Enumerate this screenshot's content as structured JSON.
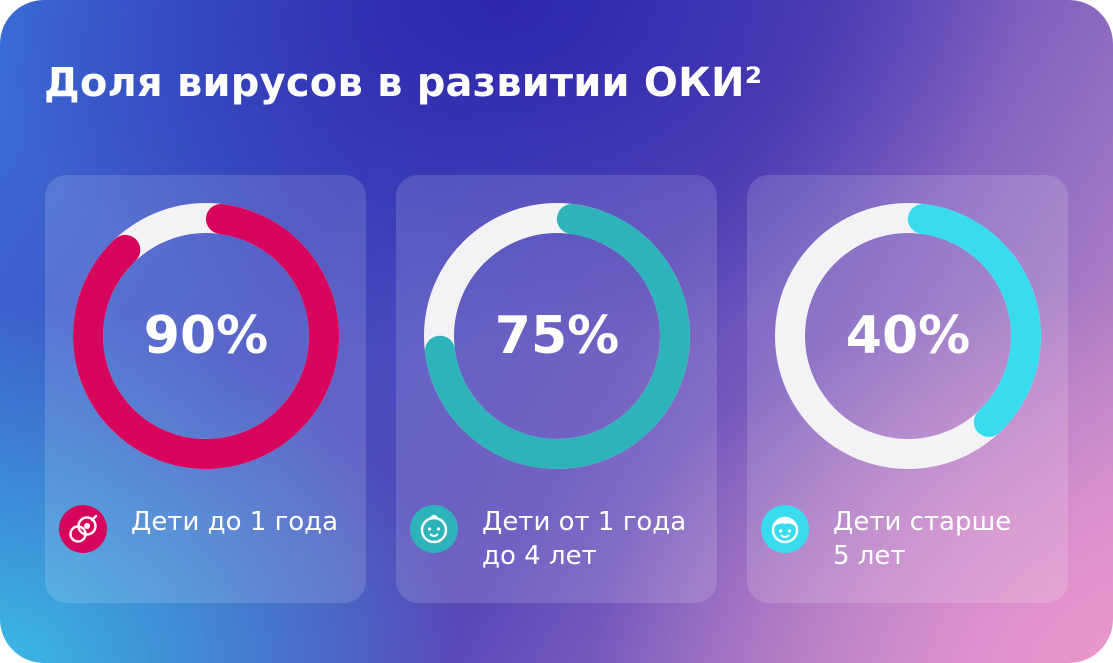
{
  "title": "Доля вирусов в развитии ОКИ²",
  "colors": {
    "track": "#f3f3f6",
    "series": [
      "#d6045c",
      "#2fb3ba",
      "#38dcee"
    ]
  },
  "chart_data": [
    {
      "type": "pie",
      "variant": "donut",
      "value": 90,
      "unit": "%",
      "label": "90%",
      "category": "Дети до 1 года",
      "color": "#d6045c",
      "icon": "pacifier-icon"
    },
    {
      "type": "pie",
      "variant": "donut",
      "value": 75,
      "unit": "%",
      "label": "75%",
      "category": "Дети от 1 года до 4 лет",
      "color": "#2fb3ba",
      "icon": "baby-face-icon"
    },
    {
      "type": "pie",
      "variant": "donut",
      "value": 40,
      "unit": "%",
      "label": "40%",
      "category": "Дети старше 5 лет",
      "color": "#38dcee",
      "icon": "child-face-icon"
    }
  ],
  "legend": [
    {
      "lines": [
        "Дети до 1 года"
      ]
    },
    {
      "lines": [
        "Дети от 1 года",
        "до 4 лет"
      ]
    },
    {
      "lines": [
        "Дети старше",
        "5 лет"
      ]
    }
  ]
}
